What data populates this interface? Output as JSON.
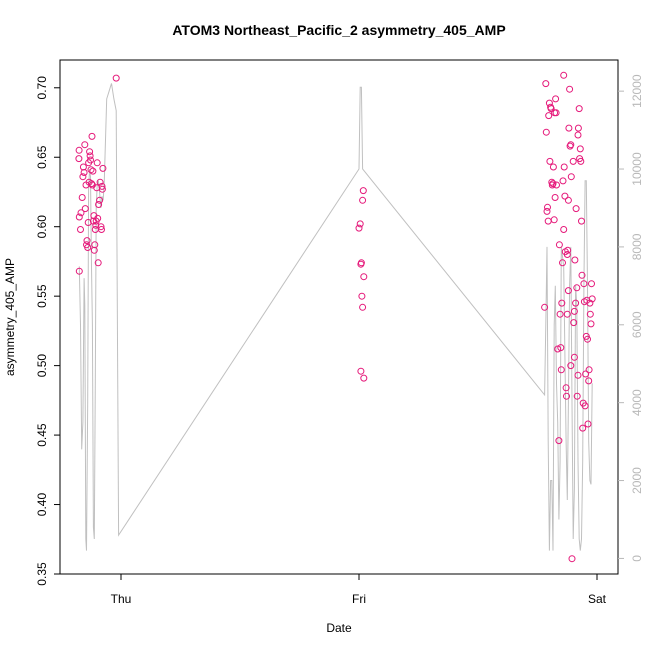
{
  "chart_data": {
    "type": "scatter",
    "title": "ATOM3 Northeast_Pacific_2 asymmetry_405_AMP",
    "xlabel": "Date",
    "ylabel": "asymmetry_405_AMP",
    "x_ticks": [
      "Thu",
      "Fri",
      "Sat"
    ],
    "x_range_days": [
      -0.2,
      2.05
    ],
    "ylim": [
      0.35,
      0.72
    ],
    "y_ticks": [
      0.35,
      0.4,
      0.45,
      0.5,
      0.55,
      0.6,
      0.65,
      0.7
    ],
    "y2_lim": [
      -400,
      12800
    ],
    "y2_ticks": [
      0,
      2000,
      4000,
      6000,
      8000,
      10000,
      12000
    ],
    "grid": false,
    "colors": {
      "points": "#e5197a",
      "line": "#c0c0c0",
      "right_axis": "#b8b8b8",
      "axes": "#000000"
    },
    "series": [
      {
        "kind": "points",
        "points": [
          [
            -0.175,
            0.568
          ],
          [
            -0.175,
            0.607
          ],
          [
            -0.177,
            0.649
          ],
          [
            -0.176,
            0.655
          ],
          [
            -0.17,
            0.598
          ],
          [
            -0.168,
            0.61
          ],
          [
            -0.163,
            0.621
          ],
          [
            -0.16,
            0.636
          ],
          [
            -0.158,
            0.643
          ],
          [
            -0.155,
            0.639
          ],
          [
            -0.152,
            0.659
          ],
          [
            -0.15,
            0.613
          ],
          [
            -0.147,
            0.63
          ],
          [
            -0.145,
            0.587
          ],
          [
            -0.143,
            0.59
          ],
          [
            -0.14,
            0.585
          ],
          [
            -0.138,
            0.603
          ],
          [
            -0.136,
            0.646
          ],
          [
            -0.134,
            0.632
          ],
          [
            -0.132,
            0.654
          ],
          [
            -0.13,
            0.651
          ],
          [
            -0.128,
            0.648
          ],
          [
            -0.126,
            0.641
          ],
          [
            -0.124,
            0.631
          ],
          [
            -0.122,
            0.665
          ],
          [
            -0.12,
            0.63
          ],
          [
            -0.118,
            0.64
          ],
          [
            -0.116,
            0.604
          ],
          [
            -0.114,
            0.608
          ],
          [
            -0.112,
            0.583
          ],
          [
            -0.11,
            0.587
          ],
          [
            -0.108,
            0.598
          ],
          [
            -0.106,
            0.601
          ],
          [
            -0.104,
            0.604
          ],
          [
            -0.102,
            0.628
          ],
          [
            -0.1,
            0.646
          ],
          [
            -0.098,
            0.606
          ],
          [
            -0.096,
            0.574
          ],
          [
            -0.094,
            0.616
          ],
          [
            -0.09,
            0.619
          ],
          [
            -0.088,
            0.632
          ],
          [
            -0.084,
            0.6
          ],
          [
            -0.082,
            0.598
          ],
          [
            -0.08,
            0.629
          ],
          [
            -0.078,
            0.627
          ],
          [
            -0.076,
            0.642
          ],
          [
            -0.02,
            0.707
          ],
          [
            1.0,
            0.599
          ],
          [
            1.005,
            0.602
          ],
          [
            1.008,
            0.573
          ],
          [
            1.015,
            0.619
          ],
          [
            1.018,
            0.626
          ],
          [
            1.01,
            0.574
          ],
          [
            1.02,
            0.564
          ],
          [
            1.012,
            0.55
          ],
          [
            1.015,
            0.542
          ],
          [
            1.008,
            0.496
          ],
          [
            1.02,
            0.491
          ],
          [
            1.78,
            0.542
          ],
          [
            1.785,
            0.703
          ],
          [
            1.787,
            0.668
          ],
          [
            1.79,
            0.611
          ],
          [
            1.792,
            0.614
          ],
          [
            1.795,
            0.604
          ],
          [
            1.797,
            0.68
          ],
          [
            1.8,
            0.689
          ],
          [
            1.802,
            0.647
          ],
          [
            1.805,
            0.686
          ],
          [
            1.807,
            0.685
          ],
          [
            1.81,
            0.632
          ],
          [
            1.812,
            0.63
          ],
          [
            1.815,
            0.631
          ],
          [
            1.817,
            0.643
          ],
          [
            1.82,
            0.605
          ],
          [
            1.822,
            0.682
          ],
          [
            1.824,
            0.621
          ],
          [
            1.826,
            0.692
          ],
          [
            1.828,
            0.682
          ],
          [
            1.83,
            0.63
          ],
          [
            1.835,
            0.512
          ],
          [
            1.84,
            0.446
          ],
          [
            1.842,
            0.587
          ],
          [
            1.845,
            0.537
          ],
          [
            1.848,
            0.513
          ],
          [
            1.85,
            0.497
          ],
          [
            1.852,
            0.545
          ],
          [
            1.855,
            0.574
          ],
          [
            1.857,
            0.633
          ],
          [
            1.86,
            0.598
          ],
          [
            1.862,
            0.643
          ],
          [
            1.865,
            0.622
          ],
          [
            1.867,
            0.582
          ],
          [
            1.87,
            0.484
          ],
          [
            1.872,
            0.478
          ],
          [
            1.875,
            0.58
          ],
          [
            1.877,
            0.583
          ],
          [
            1.88,
            0.619
          ],
          [
            1.882,
            0.671
          ],
          [
            1.885,
            0.699
          ],
          [
            1.887,
            0.658
          ],
          [
            1.89,
            0.659
          ],
          [
            1.892,
            0.636
          ],
          [
            1.895,
            0.361
          ],
          [
            1.9,
            0.647
          ],
          [
            1.902,
            0.531
          ],
          [
            1.905,
            0.506
          ],
          [
            1.907,
            0.576
          ],
          [
            1.91,
            0.545
          ],
          [
            1.912,
            0.613
          ],
          [
            1.915,
            0.556
          ],
          [
            1.917,
            0.478
          ],
          [
            1.92,
            0.493
          ],
          [
            1.922,
            0.671
          ],
          [
            1.925,
            0.685
          ],
          [
            1.927,
            0.649
          ],
          [
            1.93,
            0.656
          ],
          [
            1.932,
            0.647
          ],
          [
            1.935,
            0.604
          ],
          [
            1.937,
            0.565
          ],
          [
            1.94,
            0.455
          ],
          [
            1.942,
            0.473
          ],
          [
            1.945,
            0.559
          ],
          [
            1.947,
            0.546
          ],
          [
            1.95,
            0.471
          ],
          [
            1.952,
            0.494
          ],
          [
            1.955,
            0.521
          ],
          [
            1.957,
            0.547
          ],
          [
            1.96,
            0.519
          ],
          [
            1.962,
            0.458
          ],
          [
            1.965,
            0.489
          ],
          [
            1.967,
            0.497
          ],
          [
            1.97,
            0.545
          ],
          [
            1.972,
            0.537
          ],
          [
            1.975,
            0.53
          ],
          [
            1.977,
            0.559
          ],
          [
            1.98,
            0.548
          ],
          [
            1.875,
            0.537
          ],
          [
            1.88,
            0.554
          ],
          [
            1.905,
            0.539
          ],
          [
            1.86,
            0.709
          ],
          [
            1.92,
            0.666
          ],
          [
            1.89,
            0.5
          ]
        ]
      },
      {
        "kind": "line",
        "axis": "right",
        "points": [
          [
            -0.175,
            7500
          ],
          [
            -0.17,
            6000
          ],
          [
            -0.165,
            2800
          ],
          [
            -0.16,
            3500
          ],
          [
            -0.155,
            7200
          ],
          [
            -0.152,
            6500
          ],
          [
            -0.148,
            500
          ],
          [
            -0.145,
            200
          ],
          [
            -0.14,
            4000
          ],
          [
            -0.136,
            9500
          ],
          [
            -0.132,
            10000
          ],
          [
            -0.128,
            9800
          ],
          [
            -0.124,
            7500
          ],
          [
            -0.12,
            6000
          ],
          [
            -0.116,
            800
          ],
          [
            -0.112,
            500
          ],
          [
            -0.108,
            4500
          ],
          [
            -0.104,
            9000
          ],
          [
            -0.1,
            9600
          ],
          [
            -0.095,
            9700
          ],
          [
            -0.09,
            9400
          ],
          [
            -0.085,
            9000
          ],
          [
            -0.08,
            9300
          ],
          [
            -0.075,
            9200
          ],
          [
            -0.07,
            9700
          ],
          [
            -0.06,
            11800
          ],
          [
            -0.05,
            12000
          ],
          [
            -0.04,
            12200
          ],
          [
            -0.03,
            11800
          ],
          [
            -0.02,
            11500
          ],
          [
            -0.01,
            600
          ],
          [
            1.0,
            10000
          ],
          [
            1.005,
            12100
          ],
          [
            1.01,
            12100
          ],
          [
            1.015,
            10000
          ],
          [
            1.78,
            4200
          ],
          [
            1.785,
            6000
          ],
          [
            1.79,
            8000
          ],
          [
            1.795,
            3000
          ],
          [
            1.8,
            200
          ],
          [
            1.805,
            2000
          ],
          [
            1.81,
            2000
          ],
          [
            1.815,
            200
          ],
          [
            1.82,
            6000
          ],
          [
            1.825,
            7000
          ],
          [
            1.83,
            4500
          ],
          [
            1.835,
            3500
          ],
          [
            1.84,
            1000
          ],
          [
            1.845,
            2500
          ],
          [
            1.85,
            8000
          ],
          [
            1.86,
            7500
          ],
          [
            1.87,
            3000
          ],
          [
            1.875,
            1500
          ],
          [
            1.88,
            4000
          ],
          [
            1.885,
            7000
          ],
          [
            1.89,
            8000
          ],
          [
            1.895,
            4000
          ],
          [
            1.9,
            500
          ],
          [
            1.905,
            1800
          ],
          [
            1.91,
            7000
          ],
          [
            1.915,
            6500
          ],
          [
            1.92,
            2500
          ],
          [
            1.925,
            500
          ],
          [
            1.93,
            200
          ],
          [
            1.935,
            500
          ],
          [
            1.94,
            2500
          ],
          [
            1.945,
            7000
          ],
          [
            1.95,
            9700
          ],
          [
            1.955,
            9700
          ],
          [
            1.96,
            7000
          ],
          [
            1.965,
            3000
          ],
          [
            1.97,
            2000
          ],
          [
            1.975,
            1900
          ],
          [
            1.98,
            4500
          ]
        ]
      }
    ]
  }
}
